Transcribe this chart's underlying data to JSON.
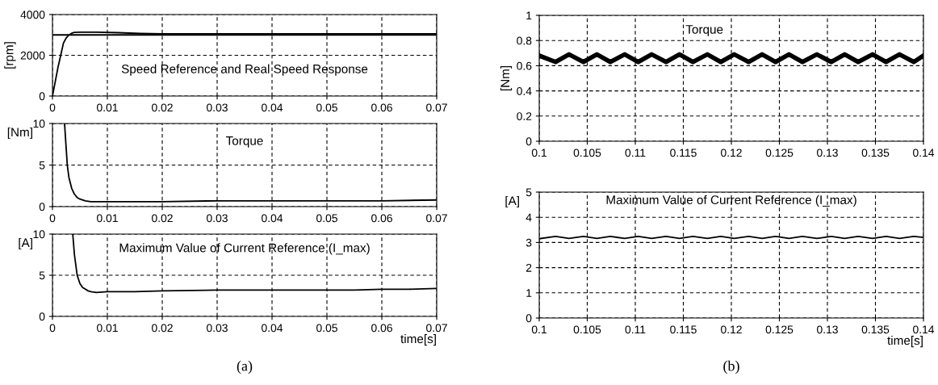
{
  "chart_data": [
    {
      "type": "line",
      "ylabel": "[rpm]",
      "annotations": [
        "Speed Reference and Real Speed Response"
      ],
      "xlim": [
        0,
        0.07
      ],
      "ylim": [
        0,
        4000
      ],
      "xticks": [
        0,
        0.01,
        0.02,
        0.03,
        0.04,
        0.05,
        0.06,
        0.07
      ],
      "yticks": [
        0,
        2000,
        4000
      ],
      "grid": true,
      "legend": false,
      "series": [
        {
          "color": "#000000",
          "x": [
            0,
            0.07
          ],
          "values": [
            3000,
            3000
          ]
        },
        {
          "color": "#000000",
          "x": [
            0,
            0.0005,
            0.001,
            0.0015,
            0.002,
            0.0025,
            0.003,
            0.0035,
            0.004,
            0.005,
            0.008,
            0.012,
            0.016,
            0.02,
            0.03,
            0.038,
            0.05,
            0.06,
            0.07
          ],
          "values": [
            0,
            700,
            1400,
            2000,
            2600,
            2850,
            3000,
            3080,
            3120,
            3130,
            3130,
            3110,
            3070,
            3050,
            3050,
            3050,
            3050,
            3050,
            3050
          ]
        }
      ]
    },
    {
      "type": "line",
      "ylabel": "[Nm]",
      "annotations": [
        "Torque"
      ],
      "xlim": [
        0,
        0.07
      ],
      "ylim": [
        0,
        10
      ],
      "xticks": [
        0,
        0.01,
        0.02,
        0.03,
        0.04,
        0.05,
        0.06,
        0.07
      ],
      "yticks": [
        0,
        5,
        10
      ],
      "grid": true,
      "legend": false,
      "series": [
        {
          "color": "#000000",
          "x": [
            0.0022,
            0.0025,
            0.0027,
            0.003,
            0.0035,
            0.004,
            0.0045,
            0.005,
            0.006,
            0.007,
            0.01,
            0.02,
            0.03,
            0.04,
            0.05,
            0.06,
            0.07
          ],
          "values": [
            10,
            7,
            5,
            3.5,
            2.2,
            1.5,
            1.1,
            0.9,
            0.7,
            0.6,
            0.6,
            0.6,
            0.7,
            0.7,
            0.7,
            0.7,
            0.8
          ]
        }
      ]
    },
    {
      "type": "line",
      "ylabel": "[A]",
      "xlabel": "time[s]",
      "annotations": [
        "Maximum Value of Current Reference (I_max)",
        "(a)"
      ],
      "xlim": [
        0,
        0.07
      ],
      "ylim": [
        0,
        10
      ],
      "xticks": [
        0,
        0.01,
        0.02,
        0.03,
        0.04,
        0.05,
        0.06,
        0.07
      ],
      "yticks": [
        0,
        5,
        10
      ],
      "grid": true,
      "legend": false,
      "series": [
        {
          "color": "#000000",
          "x": [
            0.0037,
            0.004,
            0.0045,
            0.005,
            0.0055,
            0.006,
            0.0065,
            0.007,
            0.008,
            0.01,
            0.015,
            0.02,
            0.03,
            0.04,
            0.05,
            0.055,
            0.06,
            0.065,
            0.07
          ],
          "values": [
            10,
            7.5,
            5,
            4,
            3.5,
            3.3,
            3.1,
            3.0,
            2.9,
            3.0,
            3.0,
            3.1,
            3.2,
            3.2,
            3.2,
            3.2,
            3.3,
            3.3,
            3.4
          ]
        }
      ]
    },
    {
      "type": "line",
      "ylabel": "[Nm]",
      "annotations": [
        "Torque"
      ],
      "xlim": [
        0.1,
        0.14
      ],
      "ylim": [
        0,
        1
      ],
      "xticks": [
        0.1,
        0.105,
        0.11,
        0.115,
        0.12,
        0.125,
        0.13,
        0.135,
        0.14
      ],
      "yticks": [
        0,
        0.2,
        0.4,
        0.6,
        0.8,
        1
      ],
      "grid": true,
      "legend": false,
      "series": [
        {
          "color": "#000000",
          "x": [
            0.1,
            0.1017,
            0.1031,
            0.1046,
            0.106,
            0.1074,
            0.1089,
            0.1103,
            0.1117,
            0.1132,
            0.1146,
            0.116,
            0.1175,
            0.1189,
            0.1203,
            0.1218,
            0.1232,
            0.1246,
            0.126,
            0.1274,
            0.1289,
            0.1304,
            0.1318,
            0.1332,
            0.1347,
            0.1361,
            0.1375,
            0.139,
            0.14
          ],
          "values": [
            0.68,
            0.63,
            0.69,
            0.63,
            0.69,
            0.63,
            0.69,
            0.63,
            0.69,
            0.63,
            0.69,
            0.63,
            0.69,
            0.63,
            0.69,
            0.63,
            0.69,
            0.63,
            0.69,
            0.63,
            0.69,
            0.63,
            0.69,
            0.63,
            0.69,
            0.63,
            0.69,
            0.63,
            0.68
          ]
        }
      ]
    },
    {
      "type": "line",
      "ylabel": "[A]",
      "xlabel": "time[s]",
      "annotations": [
        "Maximum Value of Current Reference (I_max)",
        "(b)"
      ],
      "xlim": [
        0.1,
        0.14
      ],
      "ylim": [
        0,
        5
      ],
      "xticks": [
        0.1,
        0.105,
        0.11,
        0.115,
        0.12,
        0.125,
        0.13,
        0.135,
        0.14
      ],
      "yticks": [
        0,
        1,
        2,
        3,
        4,
        5
      ],
      "grid": true,
      "legend": false,
      "series": [
        {
          "color": "#000000",
          "x": [
            0.1,
            0.1017,
            0.1031,
            0.1046,
            0.106,
            0.1074,
            0.1089,
            0.1103,
            0.1117,
            0.1132,
            0.1146,
            0.116,
            0.1175,
            0.1189,
            0.1203,
            0.1218,
            0.1232,
            0.1246,
            0.126,
            0.1274,
            0.1289,
            0.1304,
            0.1318,
            0.1332,
            0.1347,
            0.1361,
            0.1375,
            0.139,
            0.14
          ],
          "values": [
            3.15,
            3.24,
            3.16,
            3.24,
            3.16,
            3.24,
            3.16,
            3.24,
            3.16,
            3.24,
            3.16,
            3.24,
            3.16,
            3.24,
            3.16,
            3.24,
            3.16,
            3.24,
            3.16,
            3.24,
            3.16,
            3.24,
            3.16,
            3.24,
            3.16,
            3.24,
            3.16,
            3.24,
            3.2
          ]
        }
      ]
    }
  ]
}
